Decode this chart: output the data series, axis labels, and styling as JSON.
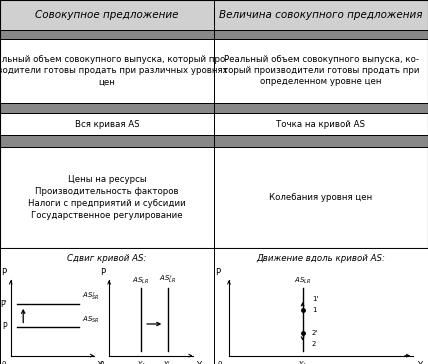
{
  "title_col1": "Совокупное предложение",
  "title_col2": "Величина совокупного предложения",
  "row1_col1": "Реальный объем совокупного выпуска, который про-\nизводители готовы продать при различных уровнях\nцен",
  "row1_col2": "Реальный объем совокупного выпуска, ко-\nторый производители готовы продать при\nопределенном уровне цен",
  "row2_col1": "Вся кривая AS",
  "row2_col2": "Точка на кривой AS",
  "row3_col1": "Цены на ресурсы\nПроизводительность факторов\nНалоги с предприятий и субсидии\nГосударственное регулирование",
  "row3_col2": "Колебания уровня цен",
  "bottom_title_left": "Сдвиг кривой AS:",
  "bottom_title_right": "Движение вдоль кривой AS:",
  "stripe_color": "#888888",
  "header_color": "#d0d0d0",
  "white": "#ffffff",
  "black": "#000000",
  "font_header": 7.5,
  "font_body": 6.2,
  "font_diagram": 6.0
}
